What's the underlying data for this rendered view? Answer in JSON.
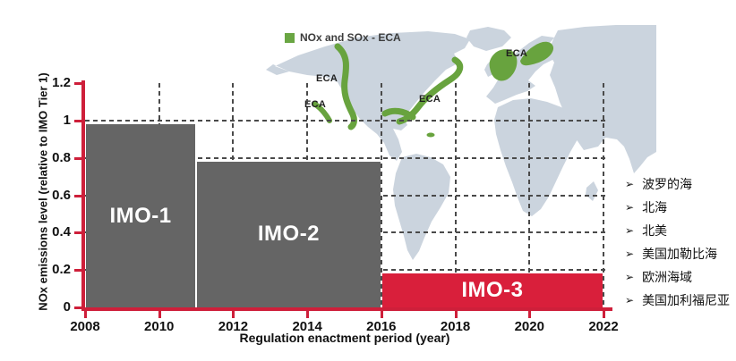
{
  "chart_data": {
    "type": "bar",
    "title": "",
    "xlabel": "Regulation enactment period (year)",
    "ylabel": "NOx emissions level (relative to IMO Tier 1)",
    "x_range": [
      2008,
      2022
    ],
    "ylim": [
      0,
      1.2
    ],
    "x_ticks": [
      "2008",
      "2010",
      "2012",
      "2014",
      "2016",
      "2018",
      "2020",
      "2022"
    ],
    "y_ticks": [
      "0",
      "0.2",
      "0.4",
      "0.6",
      "0.8",
      "1",
      "1.2"
    ],
    "y_tick_values": [
      0,
      0.2,
      0.4,
      0.6,
      0.8,
      1,
      1.2
    ],
    "grid": true,
    "gridline_values_y": [
      0.2,
      0.4,
      0.6,
      0.8,
      1.0
    ],
    "gridline_years_x": [
      2010,
      2012,
      2014,
      2016,
      2018,
      2020,
      2022
    ],
    "bars": [
      {
        "label": "IMO-1",
        "start_year": 2008,
        "end_year": 2011,
        "value": 0.98,
        "color": "#656565"
      },
      {
        "label": "IMO-2",
        "start_year": 2011,
        "end_year": 2016,
        "value": 0.78,
        "color": "#656565"
      },
      {
        "label": "IMO-3",
        "start_year": 2016,
        "end_year": 2022,
        "value": 0.18,
        "color": "#d91f3b"
      }
    ],
    "legend": [
      {
        "label": "NOx and SOx - ECA",
        "color": "#6aa643"
      }
    ],
    "legend_position": "top",
    "axis_color": "#ce1f3a"
  },
  "map": {
    "land_color": "#cbd4de",
    "eca_color": "#68a33e",
    "eca_labels": [
      {
        "text": "ECA"
      },
      {
        "text": "ECA"
      },
      {
        "text": "ECA"
      },
      {
        "text": "ECA"
      }
    ]
  },
  "region_list": {
    "bullet": "➢",
    "items": [
      {
        "text": "波罗的海"
      },
      {
        "text": "北海"
      },
      {
        "text": "北美"
      },
      {
        "text": "美国加勒比海"
      },
      {
        "text": "欧洲海域"
      },
      {
        "text": "美国加利福尼亚"
      }
    ]
  }
}
